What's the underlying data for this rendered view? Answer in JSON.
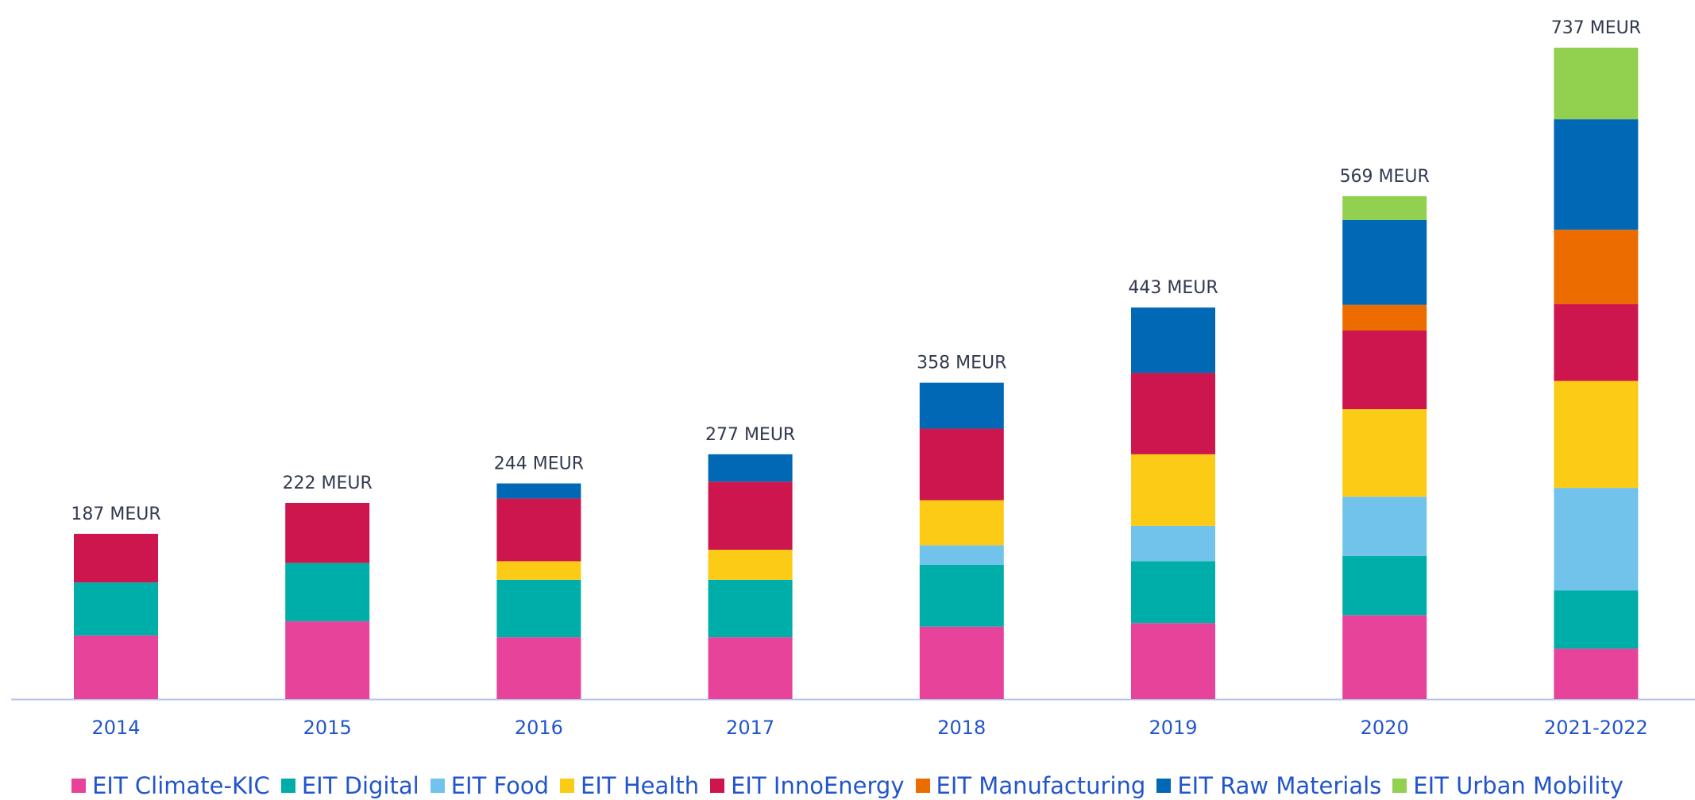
{
  "chart_data": {
    "type": "stacked_bar",
    "categories": [
      "2014",
      "2015",
      "2016",
      "2017",
      "2018",
      "2019",
      "2020",
      "2021-2022"
    ],
    "series": [
      {
        "name": "EIT Climate-KIC",
        "color": "#e8439a",
        "values": [
          72,
          88,
          70,
          70,
          82,
          86,
          95,
          57
        ]
      },
      {
        "name": "EIT Digital",
        "color": "#00aea9",
        "values": [
          60,
          66,
          65,
          65,
          70,
          70,
          67,
          66
        ]
      },
      {
        "name": "EIT Food",
        "color": "#72c3eb",
        "values": [
          null,
          null,
          null,
          null,
          22,
          40,
          67,
          116
        ]
      },
      {
        "name": "EIT Health",
        "color": "#fbcb15",
        "values": [
          null,
          null,
          21,
          34,
          51,
          81,
          99,
          121
        ]
      },
      {
        "name": "EIT InnoEnergy",
        "color": "#cc164d",
        "values": [
          55,
          68,
          71,
          77,
          81,
          92,
          89,
          87
        ]
      },
      {
        "name": "EIT Manufacturing",
        "color": "#ec6c00",
        "values": [
          null,
          null,
          null,
          null,
          null,
          null,
          29,
          84
        ]
      },
      {
        "name": "EIT Raw Materials",
        "color": "#0068b5",
        "values": [
          null,
          null,
          17,
          31,
          52,
          74,
          96,
          125
        ]
      },
      {
        "name": "EIT Urban Mobility",
        "color": "#92d050",
        "values": [
          null,
          null,
          null,
          null,
          null,
          null,
          27,
          81
        ]
      }
    ],
    "totals": {
      "values": [
        187,
        222,
        244,
        277,
        358,
        443,
        569,
        737
      ],
      "value_labels": [
        "187 MEUR",
        "222 MEUR",
        "244 MEUR",
        "277 MEUR",
        "358 MEUR",
        "443 MEUR",
        "569 MEUR",
        "737 MEUR"
      ]
    },
    "legend": "bottom"
  }
}
